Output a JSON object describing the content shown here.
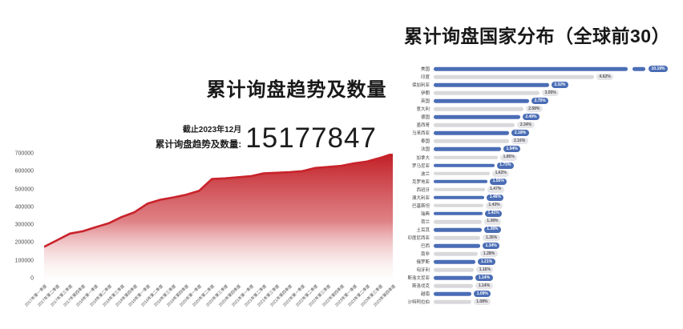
{
  "left_chart": {
    "title": "累计询盘趋势及数量",
    "as_of": "截止2023年12月",
    "stat_label": "累计询盘趋势及数量:",
    "stat_value": "15177847"
  },
  "right_chart": {
    "title": "累计询盘国家分布（全球前30）"
  },
  "colors": {
    "red_line": "#c9232b",
    "area_top": "#c11e25",
    "area_mid": "#d25056",
    "blue_bar": "#4a6db5",
    "gray_bar": "#d9d9dc",
    "badge_blue_bg": "#4a6db5",
    "badge_blue_text": "#ffffff",
    "badge_gray_bg": "#e6e6e9",
    "badge_gray_text": "#57575c",
    "axis_text": "#4a4a4a",
    "title_text": "#181818"
  },
  "chart_data": [
    {
      "type": "area",
      "title": "累计询盘趋势及数量",
      "x": [
        "2017年第一季度",
        "2017年第二季度",
        "2017年第三季度",
        "2017年第四季度",
        "2018年第一季度",
        "2018年第二季度",
        "2018年第三季度",
        "2018年第四季度",
        "2019年第一季度",
        "2019年第二季度",
        "2019年第三季度",
        "2019年第四季度",
        "2020年第一季度",
        "2020年第二季度",
        "2020年第三季度",
        "2020年第四季度",
        "2021年第一季度",
        "2021年第二季度",
        "2021年第三季度",
        "2021年第四季度",
        "2022年第一季度",
        "2022年第二季度",
        "2022年第三季度",
        "2022年第四季度",
        "2023年第一季度",
        "2023年第二季度",
        "2023年第三季度",
        "2023年第四季度"
      ],
      "values": [
        178000,
        215000,
        252000,
        265000,
        288000,
        310000,
        345000,
        372000,
        420000,
        442000,
        455000,
        470000,
        492000,
        558000,
        562000,
        568000,
        574000,
        590000,
        593000,
        597000,
        602000,
        620000,
        626000,
        632000,
        646000,
        656000,
        676000,
        700000
      ],
      "xlabel": "",
      "ylabel": "",
      "ylim": [
        0,
        700000
      ],
      "yticks": [
        0,
        100000,
        200000,
        300000,
        400000,
        500000,
        600000,
        700000
      ],
      "grid": false,
      "legend": false
    },
    {
      "type": "bar",
      "orientation": "horizontal",
      "title": "累计询盘国家分布（全球前30）",
      "categories": [
        "美国",
        "印度",
        "保加利亚",
        "伊朗",
        "英国",
        "意大利",
        "德国",
        "墨西哥",
        "马来西亚",
        "泰国",
        "法国",
        "加拿大",
        "罗马尼亚",
        "波兰",
        "克罗地亚",
        "西班牙",
        "澳大利亚",
        "巴基斯坦",
        "瑞典",
        "荷兰",
        "土耳其",
        "印度尼西亚",
        "巴西",
        "南非",
        "俄罗斯",
        "匈牙利",
        "斯洛文尼亚",
        "斯洛伐克",
        "越南",
        "沙特阿拉伯"
      ],
      "values": [
        10.19,
        4.62,
        3.32,
        3.05,
        2.75,
        2.58,
        2.49,
        2.34,
        2.18,
        2.16,
        1.94,
        1.85,
        1.75,
        1.62,
        1.55,
        1.47,
        1.46,
        1.43,
        1.41,
        1.38,
        1.38,
        1.35,
        1.34,
        1.28,
        1.21,
        1.16,
        1.14,
        1.14,
        1.09,
        1.08
      ],
      "value_suffix": "%",
      "xlim": [
        0,
        5
      ],
      "legend": false,
      "note": "first bar exceeds axis and is drawn truncated with a break"
    }
  ]
}
